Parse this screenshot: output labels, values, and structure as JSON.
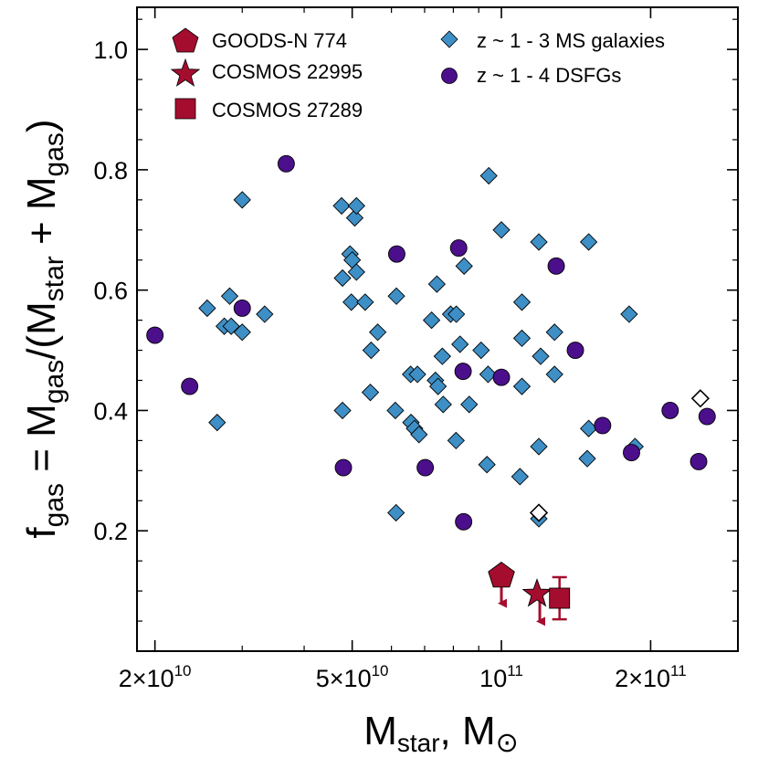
{
  "chart_data": {
    "type": "scatter",
    "xscale": "log",
    "xlim": [
      18400000000,
      300000000000
    ],
    "ylim": [
      0.0,
      1.07
    ],
    "x_ticks": [
      {
        "value": 20000000000,
        "mant": "2×10",
        "exp": "10"
      },
      {
        "value": 50000000000,
        "mant": "5×10",
        "exp": "10"
      },
      {
        "value": 100000000000,
        "mant": "10",
        "exp": "11"
      },
      {
        "value": 200000000000,
        "mant": "2×10",
        "exp": "11"
      }
    ],
    "y_ticks": [
      {
        "value": 0.2,
        "label": "0.2"
      },
      {
        "value": 0.4,
        "label": "0.4"
      },
      {
        "value": 0.6,
        "label": "0.6"
      },
      {
        "value": 0.8,
        "label": "0.8"
      },
      {
        "value": 1.0,
        "label": "1.0"
      }
    ],
    "xlabel": {
      "main": "M",
      "sub": "star",
      "tail": ", M",
      "symbol": "⊙"
    },
    "ylabel": {
      "p1": "f",
      "s1": "gas",
      "p2": " = M",
      "s2": "gas",
      "p3": "/(M",
      "s3": "star",
      "p4": " + M",
      "s4": "gas",
      "p5": ")"
    },
    "colors": {
      "ms": "#3d8fc5",
      "dsfg": "#4b0f8c",
      "highlight": "#a50d2e",
      "axis": "#000000"
    },
    "legend": {
      "goods": "GOODS-N 774",
      "cosmos22995": "COSMOS 22995",
      "cosmos27289": "COSMOS 27289",
      "ms": "z ~ 1 - 3 MS galaxies",
      "dsfg": "z ~ 1 - 4 DSFGs"
    },
    "series": [
      {
        "name": "z ~ 1 - 3 MS galaxies",
        "marker": "diamond",
        "points": [
          [
            25500000000,
            0.57
          ],
          [
            26700000000,
            0.38
          ],
          [
            27600000000,
            0.54
          ],
          [
            28300000000,
            0.59
          ],
          [
            28500000000,
            0.54
          ],
          [
            30000000000,
            0.53
          ],
          [
            30000000000,
            0.75
          ],
          [
            33300000000,
            0.56
          ],
          [
            47600000000,
            0.74
          ],
          [
            47800000000,
            0.62
          ],
          [
            47800000000,
            0.4
          ],
          [
            49500000000,
            0.66
          ],
          [
            49800000000,
            0.58
          ],
          [
            50000000000,
            0.65
          ],
          [
            50600000000,
            0.72
          ],
          [
            51000000000,
            0.74
          ],
          [
            51000000000,
            0.63
          ],
          [
            53100000000,
            0.58
          ],
          [
            54400000000,
            0.43
          ],
          [
            54600000000,
            0.5
          ],
          [
            56300000000,
            0.53
          ],
          [
            61100000000,
            0.4
          ],
          [
            61400000000,
            0.59
          ],
          [
            61300000000,
            0.23
          ],
          [
            65600000000,
            0.46
          ],
          [
            65700000000,
            0.38
          ],
          [
            66800000000,
            0.37
          ],
          [
            67700000000,
            0.46
          ],
          [
            68200000000,
            0.36
          ],
          [
            72300000000,
            0.55
          ],
          [
            73600000000,
            0.45
          ],
          [
            74100000000,
            0.61
          ],
          [
            74500000000,
            0.44
          ],
          [
            76000000000,
            0.49
          ],
          [
            76300000000,
            0.41
          ],
          [
            79000000000,
            0.56
          ],
          [
            81000000000,
            0.35
          ],
          [
            81100000000,
            0.56
          ],
          [
            82500000000,
            0.51
          ],
          [
            84100000000,
            0.64
          ],
          [
            86100000000,
            0.41
          ],
          [
            91000000000,
            0.5
          ],
          [
            93500000000,
            0.31
          ],
          [
            94000000000,
            0.46
          ],
          [
            94300000000,
            0.79
          ],
          [
            100000000000,
            0.7
          ],
          [
            109000000000,
            0.29
          ],
          [
            110000000000,
            0.44
          ],
          [
            110000000000,
            0.52
          ],
          [
            110000000000,
            0.58
          ],
          [
            119000000000,
            0.22
          ],
          [
            119000000000,
            0.34
          ],
          [
            119000000000,
            0.68
          ],
          [
            120000000000,
            0.49
          ],
          [
            128000000000,
            0.46
          ],
          [
            128000000000,
            0.53
          ],
          [
            149000000000,
            0.32
          ],
          [
            150000000000,
            0.37
          ],
          [
            150000000000,
            0.68
          ],
          [
            181000000000,
            0.56
          ],
          [
            186000000000,
            0.34
          ]
        ]
      },
      {
        "name": "open diamonds",
        "marker": "open-diamond",
        "points": [
          [
            119000000000,
            0.23
          ],
          [
            252000000000,
            0.42
          ]
        ]
      },
      {
        "name": "z ~ 1 - 4 DSFGs",
        "marker": "circle",
        "points": [
          [
            20000000000,
            0.525
          ],
          [
            23500000000,
            0.44
          ],
          [
            30000000000,
            0.57
          ],
          [
            36800000000,
            0.81
          ],
          [
            48000000000,
            0.305
          ],
          [
            61500000000,
            0.66
          ],
          [
            70200000000,
            0.305
          ],
          [
            82000000000,
            0.67
          ],
          [
            83700000000,
            0.465
          ],
          [
            83900000000,
            0.215
          ],
          [
            100000000000,
            0.455
          ],
          [
            129000000000,
            0.64
          ],
          [
            141000000000,
            0.5
          ],
          [
            160000000000,
            0.375
          ],
          [
            183000000000,
            0.33
          ],
          [
            219000000000,
            0.4
          ],
          [
            250000000000,
            0.315
          ],
          [
            260000000000,
            0.39
          ]
        ]
      },
      {
        "name": "GOODS-N 774",
        "marker": "pentagon",
        "points": [
          [
            100000000000,
            0.125
          ]
        ],
        "upper_limit": true
      },
      {
        "name": "COSMOS 22995",
        "marker": "star",
        "points": [
          [
            118000000000,
            0.095
          ]
        ],
        "upper_limit": true
      },
      {
        "name": "COSMOS 27289",
        "marker": "square",
        "points": [
          [
            131000000000,
            0.088
          ]
        ],
        "yerr": [
          0.035,
          0.035
        ]
      }
    ]
  }
}
